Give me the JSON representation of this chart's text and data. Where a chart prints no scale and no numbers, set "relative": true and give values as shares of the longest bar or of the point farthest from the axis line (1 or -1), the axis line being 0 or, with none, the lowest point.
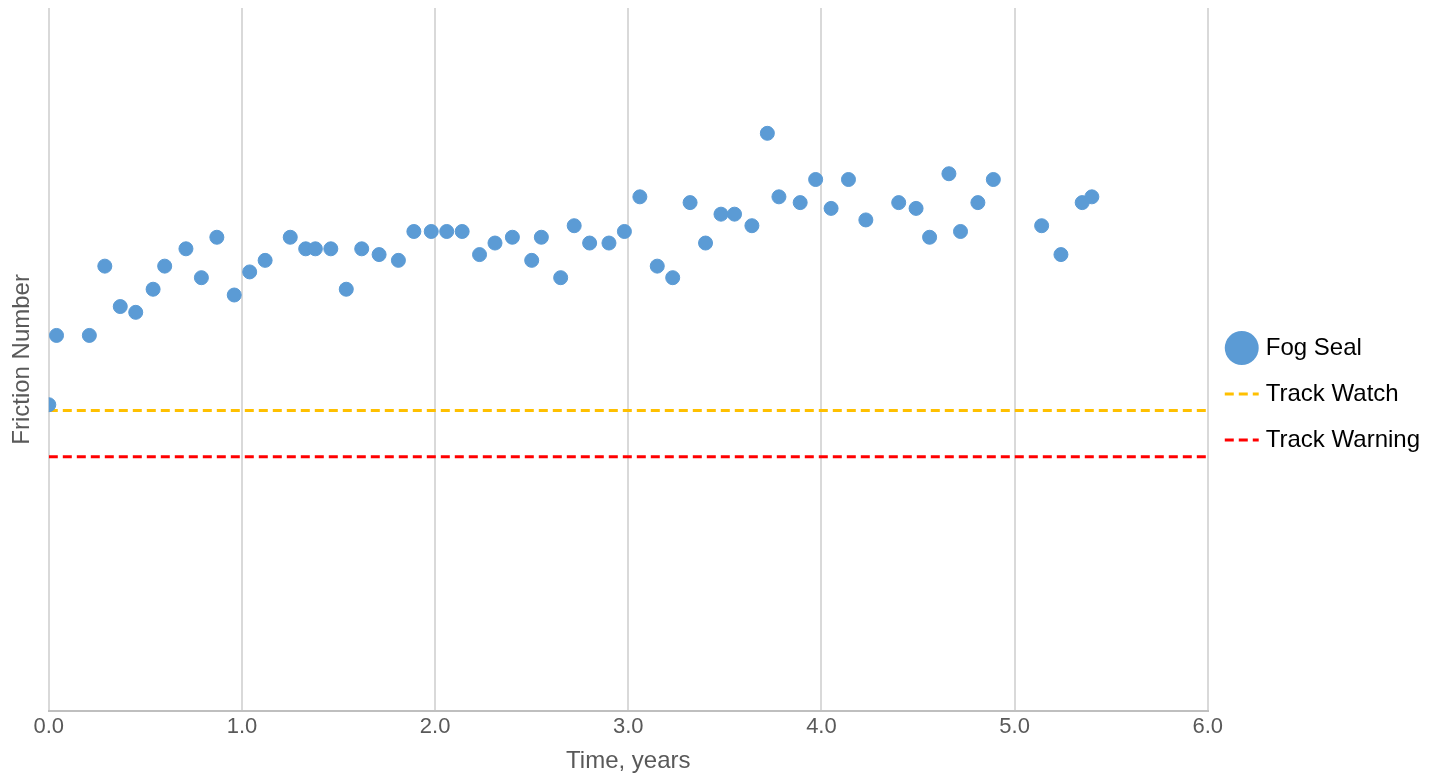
{
  "chart_data": {
    "type": "scatter",
    "xlabel": "Time, years",
    "ylabel": "Friction Number",
    "relative": true,
    "xlim": [
      0,
      6
    ],
    "xticks": [
      {
        "value": 0,
        "label": "0.0"
      },
      {
        "value": 1,
        "label": "1.0"
      },
      {
        "value": 2,
        "label": "2.0"
      },
      {
        "value": 3,
        "label": "3.0"
      },
      {
        "value": 4,
        "label": "4.0"
      },
      {
        "value": 5,
        "label": "5.0"
      },
      {
        "value": 6,
        "label": "6.0"
      }
    ],
    "grid": "x",
    "legend": "right",
    "marker": "circle",
    "series": [
      {
        "name": "Fog Seal",
        "color": "#5b9bd5",
        "x": [
          0.0,
          0.04,
          0.21,
          0.29,
          0.37,
          0.45,
          0.54,
          0.6,
          0.71,
          0.79,
          0.87,
          0.96,
          1.04,
          1.12,
          1.25,
          1.33,
          1.38,
          1.46,
          1.54,
          1.62,
          1.71,
          1.81,
          1.89,
          1.98,
          2.06,
          2.14,
          2.23,
          2.31,
          2.4,
          2.5,
          2.55,
          2.65,
          2.72,
          2.8,
          2.9,
          2.98,
          3.06,
          3.15,
          3.23,
          3.32,
          3.4,
          3.48,
          3.55,
          3.64,
          3.72,
          3.78,
          3.89,
          3.97,
          4.05,
          4.14,
          4.23,
          4.4,
          4.49,
          4.56,
          4.66,
          4.72,
          4.81,
          4.89,
          5.14,
          5.24,
          5.35,
          5.4
        ],
        "values": [
          0.53,
          0.65,
          0.65,
          0.77,
          0.7,
          0.69,
          0.73,
          0.77,
          0.8,
          0.75,
          0.82,
          0.72,
          0.76,
          0.78,
          0.82,
          0.8,
          0.8,
          0.8,
          0.73,
          0.8,
          0.79,
          0.78,
          0.83,
          0.83,
          0.83,
          0.83,
          0.79,
          0.81,
          0.82,
          0.78,
          0.82,
          0.75,
          0.84,
          0.81,
          0.81,
          0.83,
          0.89,
          0.77,
          0.75,
          0.88,
          0.81,
          0.86,
          0.86,
          0.84,
          1,
          0.89,
          0.88,
          0.92,
          0.87,
          0.92,
          0.85,
          0.88,
          0.87,
          0.82,
          0.93,
          0.83,
          0.88,
          0.92,
          0.84,
          0.79,
          0.88,
          0.89
        ]
      }
    ],
    "ref_lines": [
      {
        "axis": "y",
        "value": 0.52,
        "label": "Track Watch",
        "color": "#ffc000",
        "line_style": "dashed"
      },
      {
        "axis": "y",
        "value": 0.44,
        "label": "Track Warning",
        "color": "#ff0000",
        "line_style": "dashed"
      }
    ]
  }
}
